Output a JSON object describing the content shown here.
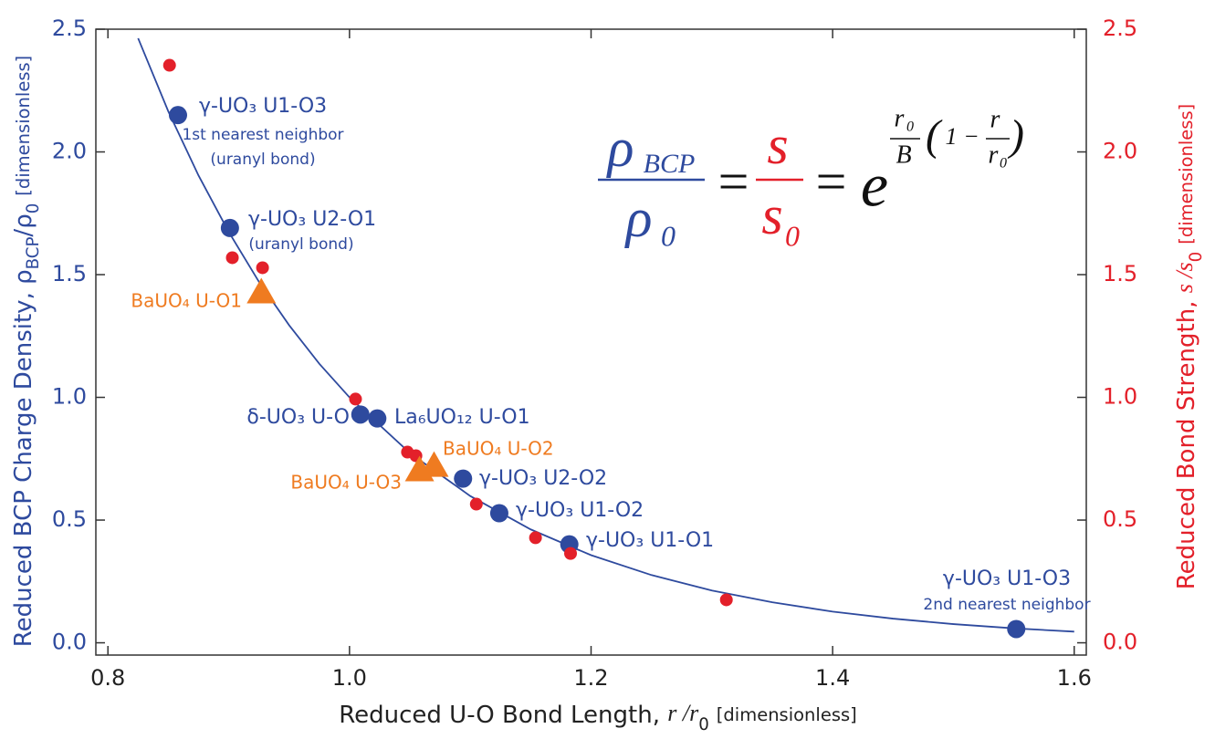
{
  "chart_data": {
    "type": "scatter",
    "x_label": [
      "Reduced U-O Bond Length, ",
      "r /r",
      "0",
      "[dimensionless]"
    ],
    "y_label": [
      "Reduced BCP Charge Density, ρ",
      "BCP",
      "/ρ",
      "0",
      "[dimensionless]"
    ],
    "y2_label": [
      "Reduced Bond Strength, ",
      "s /s",
      "0",
      "[dimensionless]"
    ],
    "xlim": [
      0.79,
      1.61
    ],
    "ylim": [
      -0.05,
      2.5
    ],
    "y2lim": [
      -0.05,
      2.5
    ],
    "xticks": [
      0.8,
      {
        "value": 1,
        "label": "1.0"
      },
      1.2,
      1.4,
      1.6
    ],
    "yticks": [
      {
        "value": 0,
        "label": "0.0"
      },
      0.5,
      {
        "value": 1,
        "label": "1.0"
      },
      1.5,
      {
        "value": 2,
        "label": "2.0"
      },
      2.5
    ],
    "y2ticks": [
      {
        "value": 0,
        "label": "0.0"
      },
      0.5,
      {
        "value": 1,
        "label": "1.0"
      },
      1.5,
      {
        "value": 2,
        "label": "2.0"
      },
      2.5
    ],
    "series": [
      {
        "type": "line",
        "color": "#2e4a9e",
        "x": [
          0.825,
          0.85,
          0.875,
          0.9,
          0.925,
          0.95,
          0.975,
          1.0,
          1.05,
          1.1,
          1.15,
          1.2,
          1.25,
          1.3,
          1.35,
          1.4,
          1.45,
          1.5,
          1.55,
          1.6
        ],
        "values": [
          2.463,
          2.165,
          1.904,
          1.674,
          1.471,
          1.294,
          1.137,
          1.0,
          0.773,
          0.598,
          0.462,
          0.357,
          0.276,
          0.213,
          0.165,
          0.127,
          0.0985,
          0.0761,
          0.0589,
          0.0455
        ]
      },
      {
        "type": "scatter",
        "marker": "circle",
        "color": "#2e4a9e",
        "x": [
          0.858,
          0.901,
          1.009,
          1.023,
          1.094,
          1.124,
          1.182,
          1.552
        ],
        "values": [
          2.15,
          1.69,
          0.93,
          0.914,
          0.669,
          0.528,
          0.401,
          0.056
        ],
        "labels": [
          [
            "γ-UO₃ U1-O3",
            "1st nearest neighbor",
            "(uranyl bond)"
          ],
          [
            "γ-UO₃ U2-O1",
            "(uranyl bond)"
          ],
          [
            "δ-UO₃ U-O"
          ],
          [
            "La₆UO₁₂ U-O1"
          ],
          [
            "γ-UO₃ U2-O2"
          ],
          [
            "γ-UO₃ U1-O2"
          ],
          [
            "γ-UO₃ U1-O1"
          ],
          [
            "γ-UO₃ U1-O3",
            "2nd nearest neighbor"
          ]
        ]
      },
      {
        "type": "scatter",
        "marker": "circle",
        "color": "#e3202a",
        "axis": "y2",
        "x": [
          0.851,
          0.903,
          0.928,
          1.005,
          1.048,
          1.055,
          1.105,
          1.154,
          1.183,
          1.312
        ],
        "values": [
          2.353,
          1.569,
          1.528,
          0.993,
          0.777,
          0.762,
          0.565,
          0.428,
          0.364,
          0.175
        ]
      },
      {
        "type": "scatter",
        "marker": "triangle",
        "color": "#ef7b20",
        "x": [
          0.927,
          1.07,
          1.058
        ],
        "values": [
          1.424,
          0.717,
          0.699
        ],
        "labels": [
          [
            "BaUO₄ U-O1"
          ],
          [
            "BaUO₄ U-O2"
          ],
          [
            "BaUO₄ U-O3"
          ]
        ]
      }
    ],
    "equation": {
      "rho": "ρ",
      "bcp": "BCP",
      "zero": "0",
      "eq": "=",
      "s": "s",
      "e": "e",
      "r": "r",
      "b": "B",
      "one": "1",
      "minus": "−",
      "lp": "(",
      "rp": ")"
    }
  }
}
